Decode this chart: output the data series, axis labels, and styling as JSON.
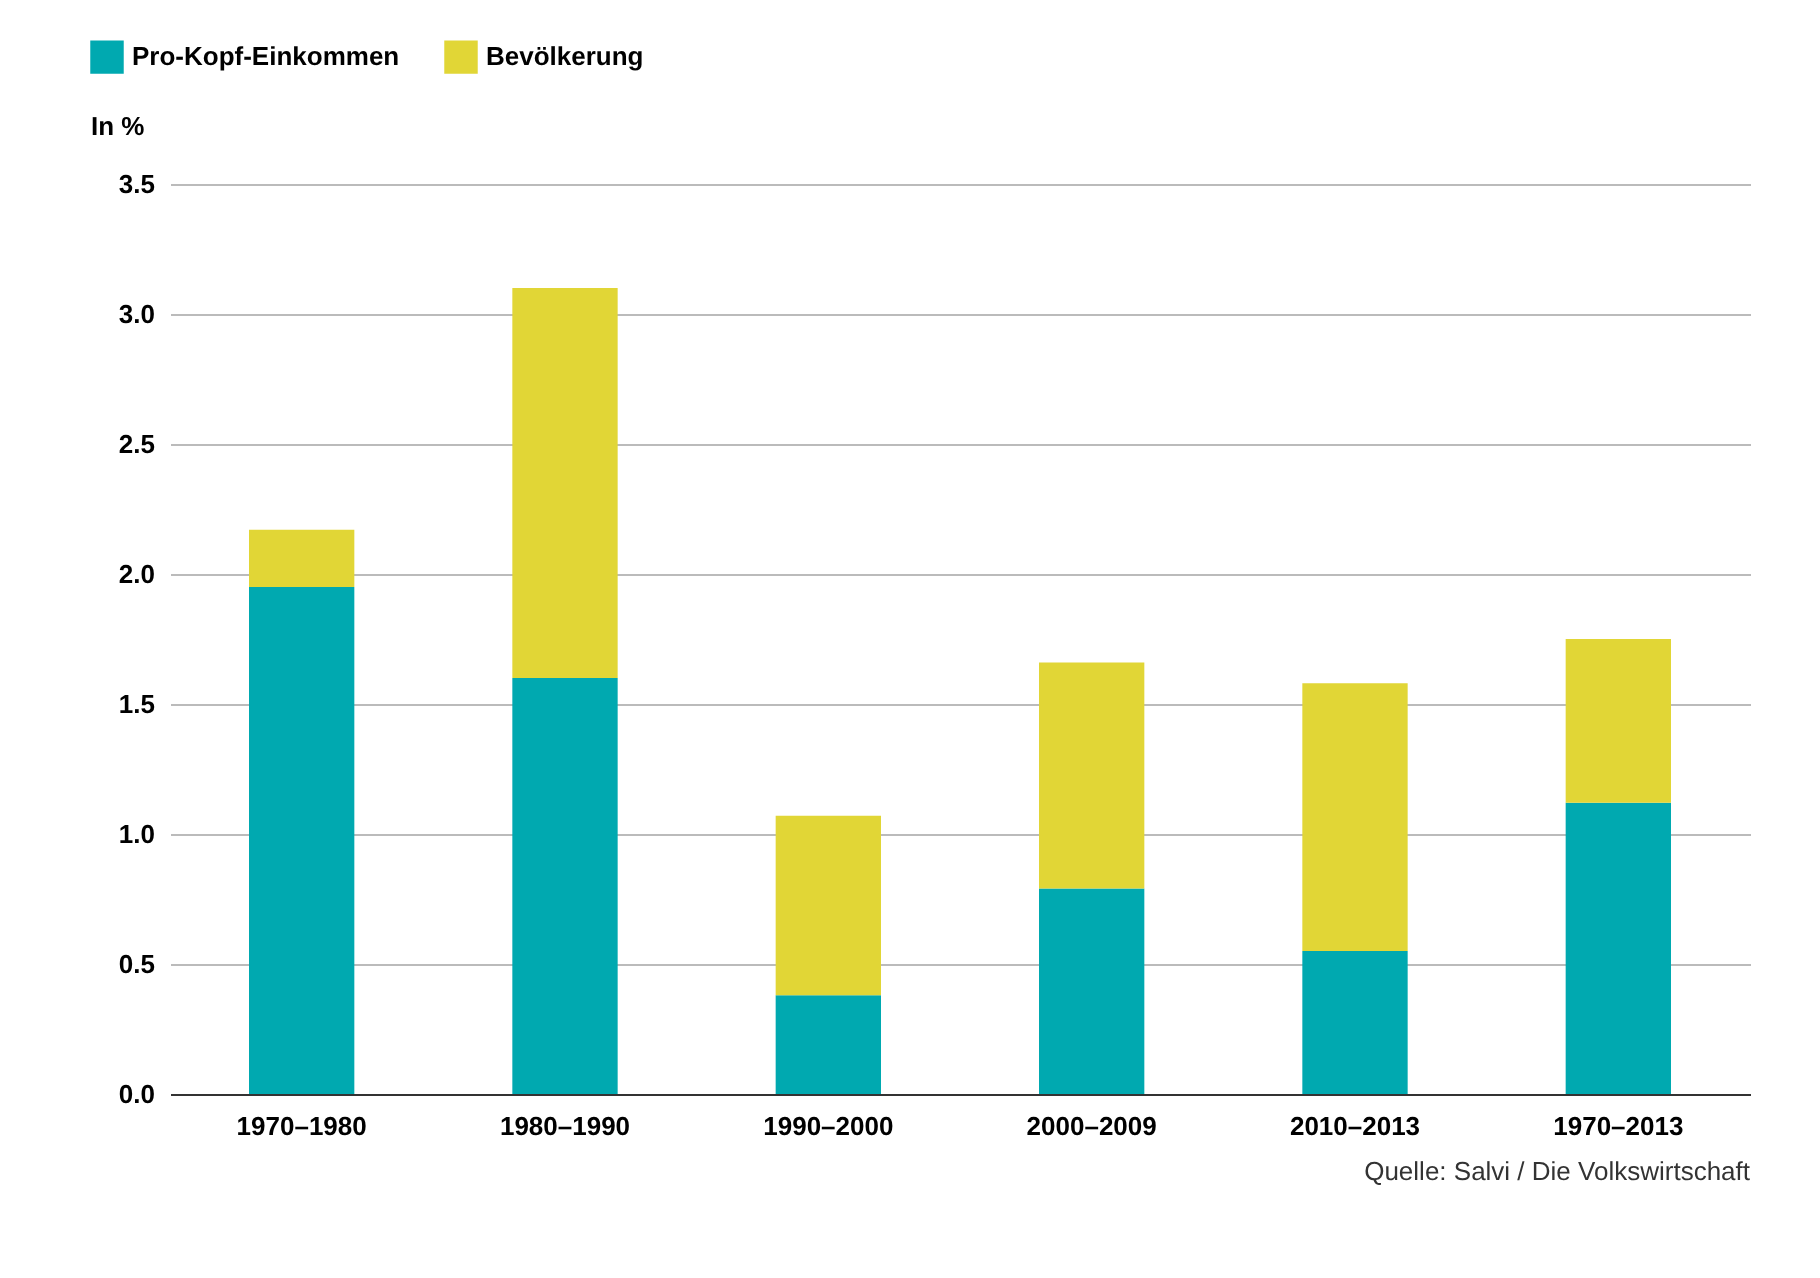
{
  "chart_data": {
    "type": "bar",
    "stacked": true,
    "ylabel": "In %",
    "categories": [
      "1970–1980",
      "1980–1990",
      "1990–2000",
      "2000–2009",
      "2010–2013",
      "1970–2013"
    ],
    "series": [
      {
        "name": "Pro-Kopf-Einkommen",
        "color": "#00a9b0",
        "values": [
          1.95,
          1.6,
          0.38,
          0.79,
          0.55,
          1.12
        ]
      },
      {
        "name": "Bevölkerung",
        "color": "#e1d636",
        "values": [
          0.22,
          1.5,
          0.69,
          0.87,
          1.03,
          0.63
        ]
      }
    ],
    "ylim": [
      0,
      3.5
    ],
    "yticks": [
      {
        "value": 0,
        "label": "0.0"
      },
      {
        "value": 0.5,
        "label": "0.5"
      },
      {
        "value": 1,
        "label": "1.0"
      },
      {
        "value": 1.5,
        "label": "1.5"
      },
      {
        "value": 2,
        "label": "2.0"
      },
      {
        "value": 2.5,
        "label": "2.5"
      },
      {
        "value": 3,
        "label": "3.0"
      },
      {
        "value": 3.5,
        "label": "3.5"
      }
    ],
    "grid": "y",
    "legend": "top left",
    "annotations": [
      "Quelle: Salvi / Die Volkswirtschaft"
    ]
  }
}
